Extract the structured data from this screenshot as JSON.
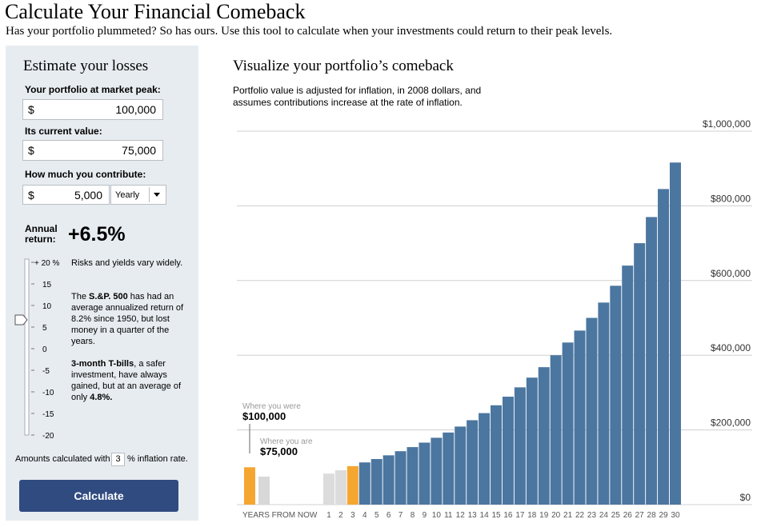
{
  "header": {
    "title": "Calculate Your Financial Comeback",
    "subtitle": "Has your portfolio plummeted? So has ours. Use this tool to calculate when your investments could return to their peak levels."
  },
  "form": {
    "title": "Estimate your losses",
    "fields": [
      {
        "label": "Your portfolio at market peak:",
        "prefix": "$",
        "value": "100,000"
      },
      {
        "label": "Its current value:",
        "prefix": "$",
        "value": "75,000"
      },
      {
        "label": "How much you contribute:",
        "prefix": "$",
        "value": "5,000",
        "frequency": "Yearly"
      }
    ],
    "return_label": "Annual return:",
    "return_value": "+6.5%",
    "slider_ticks": [
      "+ 20 %",
      "15",
      "10",
      "5",
      "0",
      "-5",
      "-10",
      "-15",
      "-20"
    ],
    "notes": [
      [
        {
          "text": "Risks and yields vary widely."
        }
      ],
      [
        {
          "text": "The "
        },
        {
          "text": "S.&P. 500",
          "bold": true
        },
        {
          "text": " has had an average annualized return of 8.2% since 1950, but lost money in a quarter of the years."
        }
      ],
      [
        {
          "text": "3-month T-bills",
          "bold": true
        },
        {
          "text": ", a safer investment, have always gained, but at an average of only "
        },
        {
          "text": "4.8%.",
          "bold": true
        }
      ]
    ],
    "inflation_before": "Amounts calculated with",
    "inflation_value": "3",
    "inflation_after": "% inflation rate.",
    "button": "Calculate"
  },
  "chart_data": {
    "type": "bar",
    "title": "Visualize your portfolio’s comeback",
    "subtitle": "Portfolio value is adjusted for inflation, in 2008 dollars, and assumes contributions increase at the rate of inflation.",
    "x_label": "YEARS FROM NOW",
    "categories": [
      null,
      null,
      "1",
      "2",
      "3",
      "4",
      "5",
      "6",
      "7",
      "8",
      "9",
      "10",
      "11",
      "12",
      "13",
      "14",
      "15",
      "16",
      "17",
      "18",
      "19",
      "20",
      "21",
      "22",
      "23",
      "24",
      "25",
      "26",
      "27",
      "28",
      "29",
      "30"
    ],
    "values": [
      100000,
      75000,
      83000,
      92000,
      103000,
      113000,
      122000,
      132000,
      143000,
      154000,
      166000,
      179000,
      193000,
      209000,
      226000,
      245000,
      266000,
      289000,
      314000,
      340000,
      368000,
      400000,
      434000,
      466000,
      500000,
      541000,
      586000,
      640000,
      700000,
      770000,
      845000,
      916000
    ],
    "colors": [
      "#f5a630",
      "#d8d8d8",
      "#dcdcdc",
      "#dcdcdc",
      "#f5a630",
      "#4b76a0",
      "#4b76a0",
      "#4b76a0",
      "#4b76a0",
      "#4b76a0",
      "#4b76a0",
      "#4b76a0",
      "#4b76a0",
      "#4b76a0",
      "#4b76a0",
      "#4b76a0",
      "#4b76a0",
      "#4b76a0",
      "#4b76a0",
      "#4b76a0",
      "#4b76a0",
      "#4b76a0",
      "#4b76a0",
      "#4b76a0",
      "#4b76a0",
      "#4b76a0",
      "#4b76a0",
      "#4b76a0",
      "#4b76a0",
      "#4b76a0",
      "#4b76a0",
      "#4b76a0"
    ],
    "annotations": [
      "Where you were",
      "Where you are"
    ],
    "value_labels": [
      "$100,000",
      "$75,000",
      null,
      null,
      null,
      null,
      null,
      null,
      null,
      null,
      null,
      null,
      null,
      null,
      null,
      null,
      null,
      null,
      null,
      null,
      null,
      null,
      null,
      null,
      null,
      null,
      null,
      null,
      null,
      null,
      null,
      null
    ],
    "ylim": [
      0,
      1000000
    ],
    "yticks": [
      {
        "value": 0,
        "label": "$0"
      },
      {
        "value": 200000,
        "label": "$200,000"
      },
      {
        "value": 400000,
        "label": "$400,000"
      },
      {
        "value": 600000,
        "label": "$600,000"
      },
      {
        "value": 800000,
        "label": "$800,000"
      },
      {
        "value": 1000000,
        "label": "$1,000,000"
      }
    ],
    "grid": true
  }
}
